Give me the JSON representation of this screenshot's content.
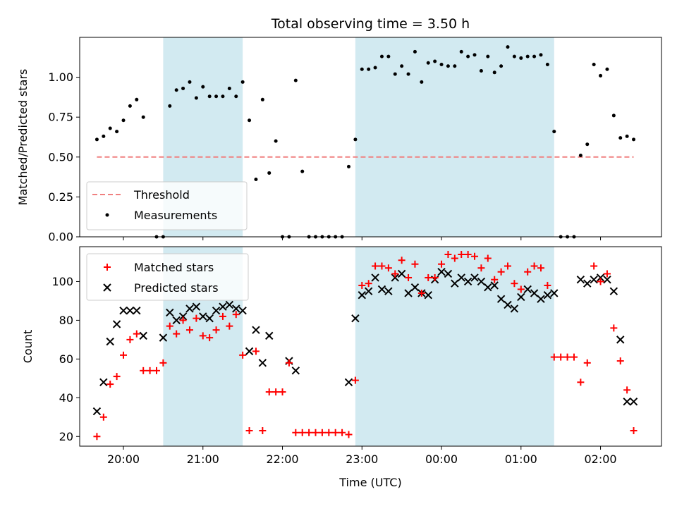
{
  "chart_data": [
    {
      "type": "scatter",
      "title": "Total observing time = 3.50 h",
      "xlabel": "",
      "ylabel": "Matched/Predicted stars",
      "ylim": [
        0,
        1.25
      ],
      "yticks": [
        "0.00",
        "0.25",
        "0.50",
        "0.75",
        "1.00"
      ],
      "shaded_intervals_utc": [
        [
          "20:30",
          "21:30"
        ],
        [
          "22:55",
          "01:25"
        ]
      ],
      "shade_color": "#add8e6",
      "legend_position": "lower-left",
      "series": [
        {
          "name": "Threshold",
          "kind": "dashed-line",
          "color": "#f08080",
          "x": [
            "19:40",
            "02:25"
          ],
          "y": [
            0.5,
            0.5
          ]
        },
        {
          "name": "Measurements",
          "kind": "points",
          "color": "#000000",
          "x": [
            "19:40",
            "19:45",
            "19:50",
            "19:55",
            "20:00",
            "20:05",
            "20:10",
            "20:15",
            "20:25",
            "20:30",
            "20:35",
            "20:40",
            "20:45",
            "20:50",
            "20:55",
            "21:00",
            "21:05",
            "21:10",
            "21:15",
            "21:20",
            "21:25",
            "21:30",
            "21:35",
            "21:40",
            "21:45",
            "21:50",
            "21:55",
            "22:00",
            "22:05",
            "22:10",
            "22:15",
            "22:20",
            "22:25",
            "22:30",
            "22:35",
            "22:40",
            "22:45",
            "22:50",
            "22:55",
            "23:00",
            "23:05",
            "23:10",
            "23:15",
            "23:20",
            "23:25",
            "23:30",
            "23:35",
            "23:40",
            "23:45",
            "23:50",
            "23:55",
            "00:00",
            "00:05",
            "00:10",
            "00:15",
            "00:20",
            "00:25",
            "00:30",
            "00:35",
            "00:40",
            "00:45",
            "00:50",
            "00:55",
            "01:00",
            "01:05",
            "01:10",
            "01:15",
            "01:20",
            "01:25",
            "01:30",
            "01:35",
            "01:40",
            "01:45",
            "01:50",
            "01:55",
            "02:00",
            "02:05",
            "02:10",
            "02:15",
            "02:20",
            "02:25"
          ],
          "y": [
            0.61,
            0.63,
            0.68,
            0.66,
            0.73,
            0.82,
            0.86,
            0.75,
            0.0,
            0.0,
            0.82,
            0.92,
            0.93,
            0.97,
            0.87,
            0.94,
            0.88,
            0.88,
            0.88,
            0.93,
            0.88,
            0.97,
            0.73,
            0.36,
            0.86,
            0.4,
            0.6,
            0.0,
            0.0,
            0.98,
            0.41,
            0.0,
            0.0,
            0.0,
            0.0,
            0.0,
            0.0,
            0.44,
            0.61,
            1.05,
            1.05,
            1.06,
            1.13,
            1.13,
            1.02,
            1.07,
            1.02,
            1.16,
            0.97,
            1.09,
            1.1,
            1.08,
            1.07,
            1.07,
            1.16,
            1.13,
            1.14,
            1.04,
            1.13,
            1.03,
            1.07,
            1.19,
            1.13,
            1.12,
            1.13,
            1.13,
            1.14,
            1.08,
            0.66,
            0.0,
            0.0,
            0.0,
            0.51,
            0.58,
            1.08,
            1.01,
            1.05,
            0.76,
            0.62,
            0.63,
            0.61
          ]
        }
      ]
    },
    {
      "type": "scatter",
      "title": "",
      "xlabel": "Time (UTC)",
      "ylabel": "Count",
      "ylim": [
        15,
        118
      ],
      "yticks": [
        "20",
        "40",
        "60",
        "80",
        "100"
      ],
      "xticks": [
        "20:00",
        "21:00",
        "22:00",
        "23:00",
        "00:00",
        "01:00",
        "02:00"
      ],
      "shaded_intervals_utc": [
        [
          "20:30",
          "21:30"
        ],
        [
          "22:55",
          "01:25"
        ]
      ],
      "shade_color": "#add8e6",
      "legend_position": "upper-left",
      "series": [
        {
          "name": "Matched stars",
          "marker": "plus",
          "color": "#ff0000",
          "x": [
            "19:40",
            "19:45",
            "19:50",
            "19:55",
            "20:00",
            "20:05",
            "20:10",
            "20:15",
            "20:20",
            "20:25",
            "20:30",
            "20:35",
            "20:40",
            "20:45",
            "20:50",
            "20:55",
            "21:00",
            "21:05",
            "21:10",
            "21:15",
            "21:20",
            "21:25",
            "21:30",
            "21:35",
            "21:40",
            "21:45",
            "21:50",
            "21:55",
            "22:00",
            "22:05",
            "22:10",
            "22:15",
            "22:20",
            "22:25",
            "22:30",
            "22:35",
            "22:40",
            "22:45",
            "22:50",
            "22:55",
            "23:00",
            "23:05",
            "23:10",
            "23:15",
            "23:20",
            "23:25",
            "23:30",
            "23:35",
            "23:40",
            "23:45",
            "23:50",
            "23:55",
            "00:00",
            "00:05",
            "00:10",
            "00:15",
            "00:20",
            "00:25",
            "00:30",
            "00:35",
            "00:40",
            "00:45",
            "00:50",
            "00:55",
            "01:00",
            "01:05",
            "01:10",
            "01:15",
            "01:20",
            "01:25",
            "01:30",
            "01:35",
            "01:40",
            "01:45",
            "01:50",
            "01:55",
            "02:00",
            "02:05",
            "02:10",
            "02:15",
            "02:20",
            "02:25"
          ],
          "y": [
            20,
            30,
            47,
            51,
            62,
            70,
            73,
            54,
            54,
            54,
            58,
            77,
            73,
            80,
            75,
            81,
            72,
            71,
            75,
            82,
            77,
            83,
            62,
            23,
            64,
            23,
            43,
            43,
            43,
            58,
            22,
            22,
            22,
            22,
            22,
            22,
            22,
            22,
            21,
            49,
            98,
            99,
            108,
            108,
            107,
            104,
            111,
            102,
            109,
            94,
            102,
            102,
            109,
            114,
            112,
            114,
            114,
            113,
            107,
            112,
            101,
            105,
            108,
            99,
            96,
            105,
            108,
            107,
            98,
            61,
            61,
            61,
            61,
            48,
            58,
            108,
            100,
            104,
            76,
            59,
            44,
            23
          ]
        },
        {
          "name": "Predicted stars",
          "marker": "x",
          "color": "#000000",
          "x": [
            "19:40",
            "19:45",
            "19:50",
            "19:55",
            "20:00",
            "20:05",
            "20:10",
            "20:15",
            "20:30",
            "20:35",
            "20:40",
            "20:45",
            "20:50",
            "20:55",
            "21:00",
            "21:05",
            "21:10",
            "21:15",
            "21:20",
            "21:25",
            "21:30",
            "21:35",
            "21:40",
            "21:45",
            "21:50",
            "22:05",
            "22:10",
            "22:50",
            "22:55",
            "23:00",
            "23:05",
            "23:10",
            "23:15",
            "23:20",
            "23:25",
            "23:30",
            "23:35",
            "23:40",
            "23:45",
            "23:50",
            "23:55",
            "00:00",
            "00:05",
            "00:10",
            "00:15",
            "00:20",
            "00:25",
            "00:30",
            "00:35",
            "00:40",
            "00:45",
            "00:50",
            "00:55",
            "01:00",
            "01:05",
            "01:10",
            "01:15",
            "01:20",
            "01:25",
            "01:45",
            "01:50",
            "01:55",
            "02:00",
            "02:05",
            "02:10",
            "02:15",
            "02:20",
            "02:25"
          ],
          "y": [
            33,
            48,
            69,
            78,
            85,
            85,
            85,
            72,
            71,
            84,
            80,
            82,
            86,
            87,
            82,
            81,
            85,
            87,
            88,
            86,
            85,
            64,
            75,
            58,
            72,
            59,
            54,
            48,
            81,
            93,
            95,
            102,
            96,
            95,
            102,
            104,
            94,
            97,
            94,
            93,
            101,
            105,
            104,
            99,
            102,
            100,
            102,
            100,
            97,
            98,
            91,
            88,
            86,
            92,
            96,
            94,
            91,
            93,
            94,
            101,
            99,
            101,
            102,
            101,
            95,
            70,
            38,
            38
          ]
        }
      ]
    }
  ]
}
